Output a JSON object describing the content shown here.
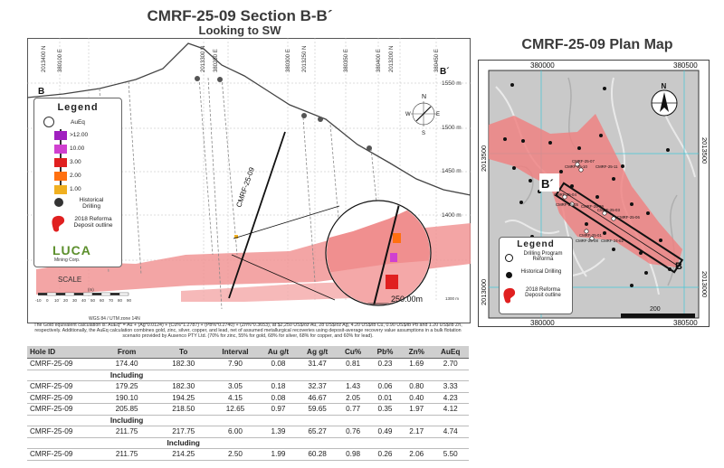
{
  "section": {
    "title": "CMRF-25-09 Section B-B´",
    "subtitle": "Looking to SW",
    "b_left": "B",
    "b_right": "B´",
    "hole_label": "CMRF-25-09",
    "top_coords": [
      "2013400 N",
      "380100 E",
      "2013300 N",
      "380250 E",
      "380300 E",
      "2013250 N",
      "380350 E",
      "380400 E",
      "2013200 N",
      "380450 E"
    ],
    "elevations": [
      "1550 m",
      "1500 m",
      "1450 m",
      "1400 m"
    ],
    "elev_small": [
      "1300 m"
    ],
    "zoom_label": "250.00m",
    "scale_label": "SCALE",
    "scale_unit": "(m)",
    "scale_ticks": [
      "-10",
      "0",
      "10",
      "20",
      "30",
      "40",
      "50",
      "60",
      "70",
      "80",
      "90"
    ],
    "datum": "WGS 84 / UTM zone 14N",
    "compass": {
      "n": "N",
      "s": "S",
      "e": "E",
      "w": "W"
    },
    "legend": {
      "title": "Legend",
      "aueq": "AuEq",
      "grades": [
        {
          "label": ">12.00",
          "color": "#a020c0"
        },
        {
          "label": "10.00",
          "color": "#d040d0"
        },
        {
          "label": "3.00",
          "color": "#e02020"
        },
        {
          "label": "2.00",
          "color": "#ff7010"
        },
        {
          "label": "1.00",
          "color": "#f0b020"
        }
      ],
      "historical": "Historical Drilling",
      "deposit": "2018 Reforma Deposit outline",
      "logo": "LUCA",
      "logo_sub": "Mining Corp."
    }
  },
  "note": "The Gold equivalent calculation is: AuEq* = Au + (Ag*0.0124) + (Cu%*1.2787) + (Pb%*0.2740) + (Zn%*0.3653), at $2,250 US$/oz Au, 28 US$/oz Ag, 4.20 US$/lb Cu, 0.90 US$/lb Pb and 1.20 US$/lb Zn, respectively. Additionally, the AuEq calculation combines gold, zinc, silver, copper, and lead, net of assumed metallurgical recoveries using deposit-average recovery value assumptions in a bulk flotation scenario provided by Ausenco PTY Ltd. (70% for zinc, 55% for gold, 68% for silver, 68% for copper, and 60% for lead).",
  "plan": {
    "title": "CMRF-25-09  Plan Map",
    "easting": [
      "380000",
      "380500"
    ],
    "northing": [
      "2013500",
      "2013000"
    ],
    "b_left": "B´",
    "b_right": "B",
    "scale_value": "200",
    "north": "N",
    "hole_labels": [
      "CMRF-25-07",
      "CMRF-25-10",
      "CMRF-25-11",
      "CMRF-25-04",
      "CMRF-25-05",
      "CMRF-25-09",
      "CMRF-25-03",
      "CMRF-25-06",
      "CMRF-25-01",
      "CMRF-25-08",
      "CMRF-24-02"
    ],
    "legend": {
      "title": "Legend",
      "program": "Drilling Program Reforma",
      "historical": "Historical Drilling",
      "deposit": "2018 Reforma Deposit outline"
    }
  },
  "table": {
    "headers": [
      "Hole ID",
      "From",
      "To",
      "Interval",
      "Au g/t",
      "Ag g/t",
      "Cu%",
      "Pb%",
      "Zn%",
      "AuEq"
    ],
    "rows": [
      {
        "type": "data",
        "cells": [
          "CMRF-25-09",
          "174.40",
          "182.30",
          "7.90",
          "0.08",
          "31.47",
          "0.81",
          "0.23",
          "1.69",
          "2.70"
        ]
      },
      {
        "type": "inc",
        "cells": [
          "",
          "Including",
          "",
          "",
          "",
          "",
          "",
          "",
          "",
          ""
        ]
      },
      {
        "type": "data",
        "cells": [
          "CMRF-25-09",
          "179.25",
          "182.30",
          "3.05",
          "0.18",
          "32.37",
          "1.43",
          "0.06",
          "0.80",
          "3.33"
        ]
      },
      {
        "type": "data",
        "cells": [
          "CMRF-25-09",
          "190.10",
          "194.25",
          "4.15",
          "0.08",
          "46.67",
          "2.05",
          "0.01",
          "0.40",
          "4.23"
        ]
      },
      {
        "type": "data",
        "cells": [
          "CMRF-25-09",
          "205.85",
          "218.50",
          "12.65",
          "0.97",
          "59.65",
          "0.77",
          "0.35",
          "1.97",
          "4.12"
        ]
      },
      {
        "type": "inc",
        "cells": [
          "",
          "Including",
          "",
          "",
          "",
          "",
          "",
          "",
          "",
          ""
        ]
      },
      {
        "type": "data",
        "cells": [
          "CMRF-25-09",
          "211.75",
          "217.75",
          "6.00",
          "1.39",
          "65.27",
          "0.76",
          "0.49",
          "2.17",
          "4.74"
        ]
      },
      {
        "type": "inc",
        "cells": [
          "",
          "",
          "Including",
          "",
          "",
          "",
          "",
          "",
          "",
          ""
        ]
      },
      {
        "type": "data",
        "cells": [
          "CMRF-25-09",
          "211.75",
          "214.25",
          "2.50",
          "1.99",
          "60.28",
          "0.98",
          "0.26",
          "2.06",
          "5.50"
        ]
      }
    ]
  }
}
